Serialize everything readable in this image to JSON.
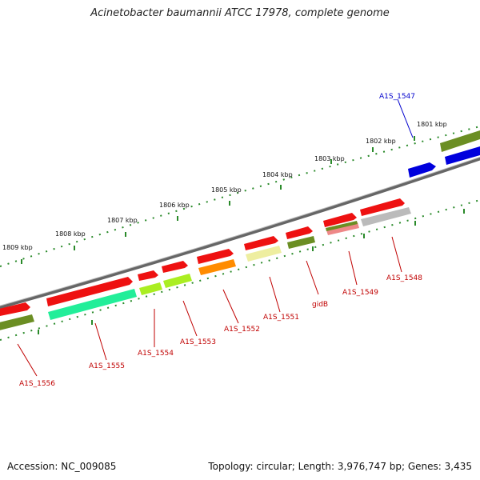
{
  "title": "Acinetobacter baumannii ATCC 17978, complete genome",
  "footer": {
    "accession": "Accession: NC_009085",
    "summary": "Topology: circular; Length: 3,976,747 bp; Genes: 3,435"
  },
  "scale_labels": [
    "1801 kbp",
    "1802 kbp",
    "1803 kbp",
    "1804 kbp",
    "1805 kbp",
    "1806 kbp",
    "1807 kbp",
    "1808 kbp",
    "1809 kbp"
  ],
  "gene_labels": [
    "A1S_1547",
    "A1S_1548",
    "A1S_1549",
    "gidB",
    "A1S_1551",
    "A1S_1552",
    "A1S_1553",
    "A1S_1554",
    "A1S_1555",
    "A1S_1556"
  ],
  "colors": {
    "red": "#ee1111",
    "blue": "#0000dd",
    "olive": "#6b8e23",
    "teal": "#22ee99",
    "lime": "#aaee22",
    "orange": "#ff8c00",
    "pale_yellow": "#eeeea0",
    "salmon": "#ee8888",
    "gray": "#bbbbbb",
    "backbone": "#888888",
    "tick": "#2a8a2a"
  }
}
